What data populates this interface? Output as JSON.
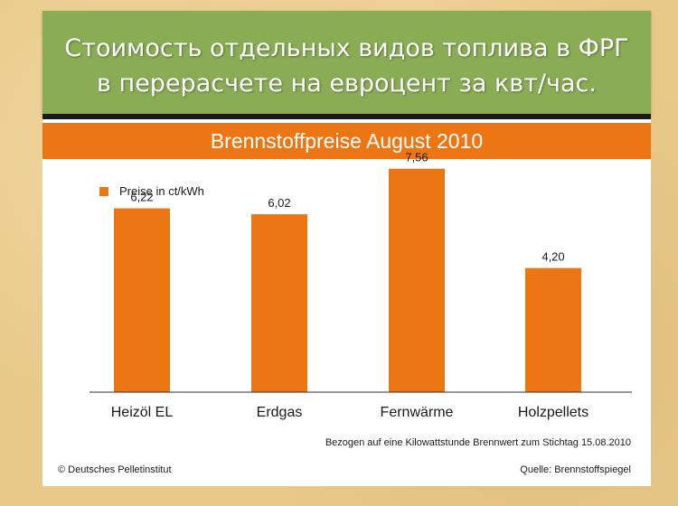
{
  "slide": {
    "title_lines": [
      "Стоимость отдельных видов топлива в ФРГ",
      "в перерасчете на евроцент за квт/час."
    ],
    "background_color": "#e8c98a",
    "title_box_color": "#8aac55"
  },
  "chart_data": {
    "type": "bar",
    "title": "Brennstoffpreise August 2010",
    "categories": [
      "Heizöl EL",
      "Erdgas",
      "Fernwärme",
      "Holzpellets"
    ],
    "series": [
      {
        "name": "Preise in ct/kWh",
        "values": [
          6.22,
          6.02,
          7.56,
          4.2
        ],
        "labels": [
          "6,22",
          "6,02",
          "7,56",
          "4,20"
        ],
        "color": "#ec7614"
      }
    ],
    "ylim": [
      0,
      8.5
    ],
    "grid": false,
    "legend": "top-left",
    "note": "Bezogen auf eine Kilowattstunde Brennwert zum Stichtag 15.08.2010",
    "copyright": "© Deutsches Pelletinstitut",
    "source": "Quelle: Brennstoffspiegel"
  }
}
